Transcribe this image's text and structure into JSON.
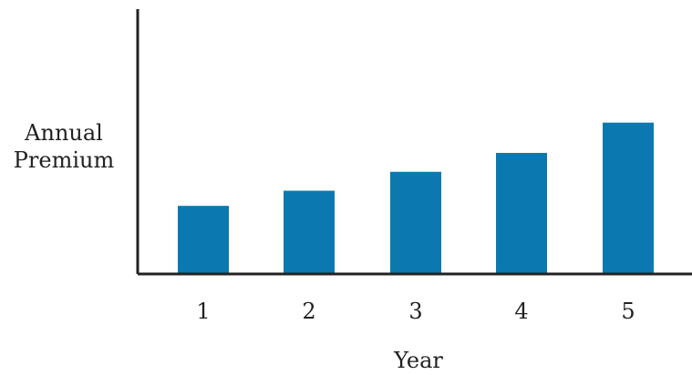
{
  "chart_data": {
    "type": "bar",
    "categories": [
      "1",
      "2",
      "3",
      "4",
      "5"
    ],
    "values": [
      2.7,
      3.3,
      4.05,
      4.8,
      6.0
    ],
    "xlabel": "Year",
    "ylabel_lines": [
      "Annual",
      "Premium"
    ],
    "ylim": [
      0,
      10.5
    ],
    "grid": false,
    "legend": "none",
    "bar_color": "#0b79b0",
    "axis_color": "#222222"
  }
}
